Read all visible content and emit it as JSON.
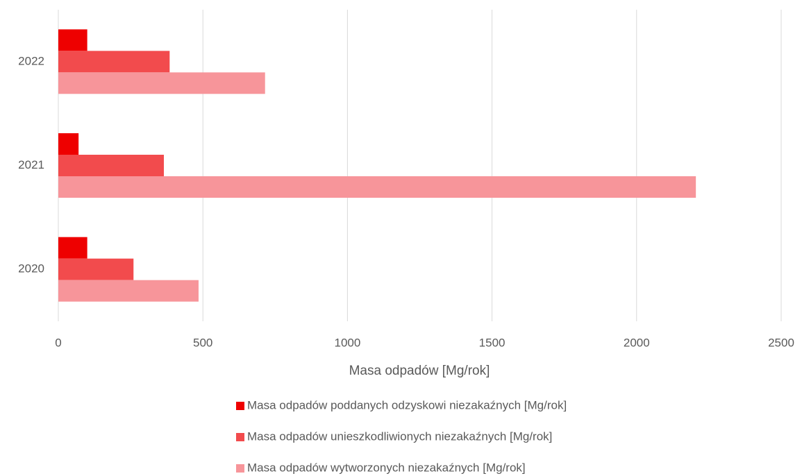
{
  "chart_data": {
    "type": "barh",
    "categories": [
      "2020",
      "2021",
      "2022"
    ],
    "series": [
      {
        "name": "Masa odpadów poddanych odzyskowi niezakaźnych [Mg/rok]",
        "color": "#ee0000",
        "values": [
          100,
          70,
          100
        ]
      },
      {
        "name": "Masa odpadów unieszkodliwionych niezakaźnych [Mg/rok]",
        "color": "#f24b4d",
        "values": [
          260,
          365,
          385
        ]
      },
      {
        "name": "Masa odpadów wytworzonych niezakaźnych [Mg/rok]",
        "color": "#f7959a",
        "values": [
          485,
          2205,
          715
        ]
      }
    ],
    "xlabel": "Masa odpadów [Mg/rok]",
    "xlim": [
      0,
      2500
    ],
    "xticks": [
      0,
      500,
      1000,
      1500,
      2000,
      2500
    ],
    "grid": true,
    "legend": "bottom"
  }
}
